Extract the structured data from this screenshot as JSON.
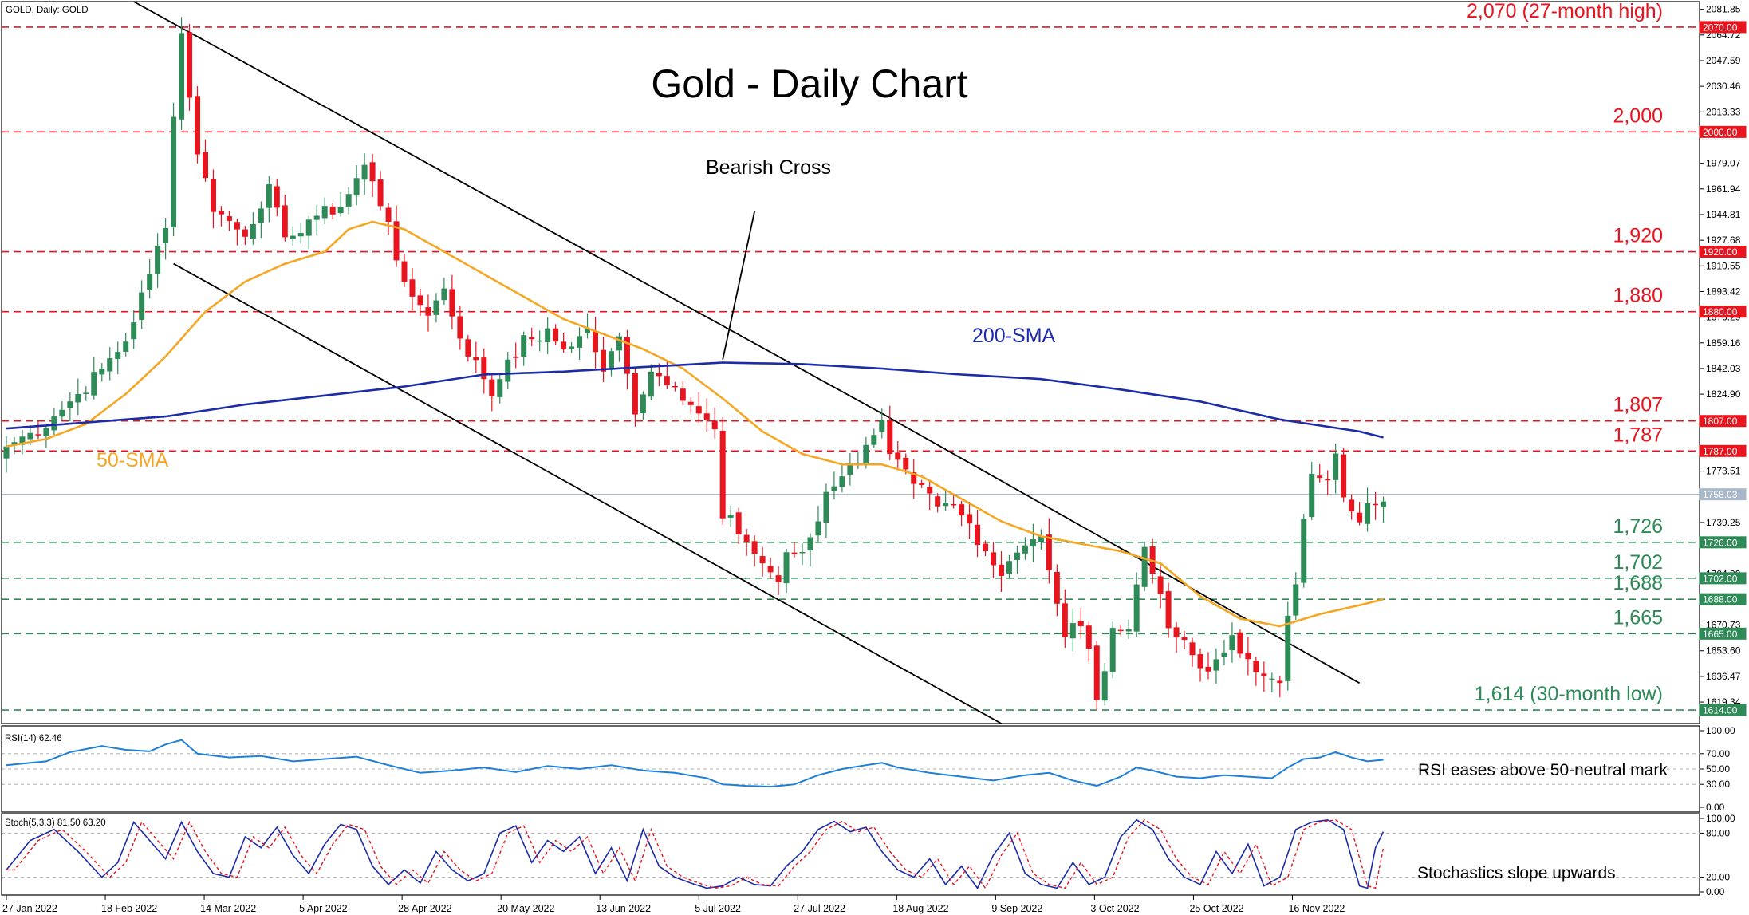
{
  "chart_data": {
    "type": "candlestick",
    "symbol_header": "GOLD, Daily:  GOLD",
    "title": "Gold - Daily Chart",
    "colors": {
      "up": "#2e8b57",
      "down": "#e8141e",
      "sma50": "#f5a623",
      "sma200": "#1c2ba8",
      "rsi": "#1e7fd8",
      "stoch_k": "#1c2ba8",
      "stoch_d": "#e8141e",
      "resistance": "#e8141e",
      "support": "#2e8b57",
      "price_line": "#a8b8c8"
    },
    "y_ticks": [
      "2081.85",
      "2064.72",
      "2047.59",
      "2030.46",
      "2013.33",
      "1979.07",
      "1961.94",
      "1944.81",
      "1927.68",
      "1910.55",
      "1893.42",
      "1876.29",
      "1859.16",
      "1842.03",
      "1824.90",
      "1773.51",
      "1739.25",
      "1704.99",
      "1670.73",
      "1653.60",
      "1636.47",
      "1619.34"
    ],
    "ylim": [
      1605,
      2087
    ],
    "x_ticks": [
      "27 Jan 2022",
      "18 Feb 2022",
      "14 Mar 2022",
      "5 Apr 2022",
      "28 Apr 2022",
      "20 May 2022",
      "13 Jun 2022",
      "5 Jul 2022",
      "27 Jul 2022",
      "18 Aug 2022",
      "9 Sep 2022",
      "3 Oct 2022",
      "25 Oct 2022",
      "16 Nov 2022"
    ],
    "levels": [
      {
        "value": 2070,
        "label": "2,070 (27-month high)",
        "tag": "2070.00",
        "kind": "resistance"
      },
      {
        "value": 2000,
        "label": "2,000",
        "tag": "2000.00",
        "kind": "resistance"
      },
      {
        "value": 1920,
        "label": "1,920",
        "tag": "1920.00",
        "kind": "resistance"
      },
      {
        "value": 1880,
        "label": "1,880",
        "tag": "1880.00",
        "kind": "resistance"
      },
      {
        "value": 1807,
        "label": "1,807",
        "tag": "1807.00",
        "kind": "resistance"
      },
      {
        "value": 1787,
        "label": "1,787",
        "tag": "1787.00",
        "kind": "resistance"
      },
      {
        "value": 1726,
        "label": "1,726",
        "tag": "1726.00",
        "kind": "support"
      },
      {
        "value": 1702,
        "label": "1,702",
        "tag": "1702.00",
        "kind": "support"
      },
      {
        "value": 1688,
        "label": "1,688",
        "tag": "1688.00",
        "kind": "support"
      },
      {
        "value": 1665,
        "label": "1,665",
        "tag": "1665.00",
        "kind": "support"
      },
      {
        "value": 1614,
        "label": "1,614 (30-month low)",
        "tag": "1614.00",
        "kind": "support"
      }
    ],
    "current_price": {
      "value": 1758.03,
      "tag": "1758.03"
    },
    "anchors": [
      [
        0,
        1790
      ],
      [
        5,
        1805
      ],
      [
        10,
        1830
      ],
      [
        15,
        1860
      ],
      [
        18,
        1905
      ],
      [
        20,
        1940
      ],
      [
        21,
        2010
      ],
      [
        22,
        2066
      ],
      [
        24,
        1985
      ],
      [
        26,
        1950
      ],
      [
        30,
        1930
      ],
      [
        33,
        1965
      ],
      [
        35,
        1925
      ],
      [
        38,
        1942
      ],
      [
        42,
        1950
      ],
      [
        45,
        1978
      ],
      [
        48,
        1940
      ],
      [
        50,
        1895
      ],
      [
        53,
        1880
      ],
      [
        55,
        1895
      ],
      [
        57,
        1862
      ],
      [
        59,
        1845
      ],
      [
        61,
        1825
      ],
      [
        63,
        1848
      ],
      [
        65,
        1860
      ],
      [
        68,
        1865
      ],
      [
        70,
        1855
      ],
      [
        73,
        1868
      ],
      [
        75,
        1840
      ],
      [
        77,
        1862
      ],
      [
        79,
        1815
      ],
      [
        81,
        1840
      ],
      [
        83,
        1835
      ],
      [
        85,
        1825
      ],
      [
        87,
        1812
      ],
      [
        89,
        1800
      ],
      [
        90,
        1742
      ],
      [
        91,
        1740
      ],
      [
        93,
        1726
      ],
      [
        95,
        1712
      ],
      [
        97,
        1700
      ],
      [
        98,
        1716
      ],
      [
        100,
        1720
      ],
      [
        102,
        1740
      ],
      [
        103,
        1762
      ],
      [
        105,
        1770
      ],
      [
        107,
        1782
      ],
      [
        109,
        1800
      ],
      [
        110,
        1805
      ],
      [
        111,
        1785
      ],
      [
        113,
        1770
      ],
      [
        115,
        1760
      ],
      [
        117,
        1750
      ],
      [
        119,
        1750
      ],
      [
        121,
        1738
      ],
      [
        123,
        1720
      ],
      [
        125,
        1705
      ],
      [
        127,
        1722
      ],
      [
        129,
        1728
      ],
      [
        130,
        1728
      ],
      [
        131,
        1705
      ],
      [
        133,
        1665
      ],
      [
        135,
        1670
      ],
      [
        136,
        1660
      ],
      [
        137,
        1622
      ],
      [
        138,
        1640
      ],
      [
        139,
        1668
      ],
      [
        141,
        1668
      ],
      [
        142,
        1702
      ],
      [
        143,
        1718
      ],
      [
        145,
        1692
      ],
      [
        146,
        1665
      ],
      [
        148,
        1660
      ],
      [
        150,
        1642
      ],
      [
        152,
        1645
      ],
      [
        154,
        1660
      ],
      [
        156,
        1648
      ],
      [
        158,
        1640
      ],
      [
        160,
        1630
      ],
      [
        161,
        1675
      ],
      [
        162,
        1698
      ],
      [
        163,
        1740
      ],
      [
        164,
        1768
      ],
      [
        166,
        1770
      ],
      [
        167,
        1782
      ],
      [
        168,
        1756
      ],
      [
        170,
        1744
      ],
      [
        171,
        1752
      ],
      [
        173,
        1758
      ]
    ],
    "sma50_anchors": [
      [
        0,
        1790
      ],
      [
        5,
        1795
      ],
      [
        10,
        1805
      ],
      [
        15,
        1825
      ],
      [
        20,
        1850
      ],
      [
        25,
        1880
      ],
      [
        30,
        1900
      ],
      [
        35,
        1912
      ],
      [
        40,
        1920
      ],
      [
        43,
        1935
      ],
      [
        46,
        1940
      ],
      [
        50,
        1935
      ],
      [
        55,
        1920
      ],
      [
        60,
        1905
      ],
      [
        65,
        1890
      ],
      [
        70,
        1875
      ],
      [
        75,
        1865
      ],
      [
        80,
        1855
      ],
      [
        85,
        1842
      ],
      [
        90,
        1822
      ],
      [
        95,
        1800
      ],
      [
        100,
        1785
      ],
      [
        105,
        1778
      ],
      [
        110,
        1778
      ],
      [
        115,
        1770
      ],
      [
        120,
        1755
      ],
      [
        125,
        1740
      ],
      [
        130,
        1730
      ],
      [
        135,
        1725
      ],
      [
        140,
        1720
      ],
      [
        145,
        1712
      ],
      [
        150,
        1690
      ],
      [
        155,
        1675
      ],
      [
        160,
        1670
      ],
      [
        165,
        1678
      ],
      [
        170,
        1684
      ],
      [
        173,
        1688
      ]
    ],
    "sma200_anchors": [
      [
        0,
        1802
      ],
      [
        10,
        1806
      ],
      [
        20,
        1810
      ],
      [
        30,
        1818
      ],
      [
        40,
        1824
      ],
      [
        50,
        1830
      ],
      [
        60,
        1838
      ],
      [
        70,
        1840
      ],
      [
        80,
        1843
      ],
      [
        90,
        1846
      ],
      [
        100,
        1845
      ],
      [
        110,
        1842
      ],
      [
        120,
        1838
      ],
      [
        130,
        1835
      ],
      [
        140,
        1828
      ],
      [
        150,
        1820
      ],
      [
        160,
        1808
      ],
      [
        165,
        1804
      ],
      [
        170,
        1800
      ],
      [
        173,
        1796
      ]
    ],
    "rsi": {
      "label": "RSI(14) 62.46",
      "ticks": [
        "100.00",
        "70.00",
        "50.00",
        "30.00",
        "0.00"
      ],
      "ylim": [
        0,
        100
      ],
      "anchors": [
        [
          0,
          55
        ],
        [
          5,
          60
        ],
        [
          8,
          72
        ],
        [
          12,
          80
        ],
        [
          15,
          75
        ],
        [
          18,
          73
        ],
        [
          20,
          82
        ],
        [
          22,
          88
        ],
        [
          24,
          70
        ],
        [
          28,
          65
        ],
        [
          32,
          67
        ],
        [
          36,
          60
        ],
        [
          40,
          63
        ],
        [
          44,
          66
        ],
        [
          48,
          55
        ],
        [
          52,
          45
        ],
        [
          56,
          48
        ],
        [
          60,
          52
        ],
        [
          64,
          46
        ],
        [
          68,
          54
        ],
        [
          72,
          50
        ],
        [
          76,
          55
        ],
        [
          80,
          48
        ],
        [
          84,
          45
        ],
        [
          88,
          38
        ],
        [
          90,
          30
        ],
        [
          93,
          28
        ],
        [
          96,
          27
        ],
        [
          99,
          30
        ],
        [
          102,
          42
        ],
        [
          105,
          50
        ],
        [
          108,
          55
        ],
        [
          110,
          58
        ],
        [
          112,
          52
        ],
        [
          116,
          45
        ],
        [
          120,
          40
        ],
        [
          124,
          35
        ],
        [
          128,
          42
        ],
        [
          131,
          45
        ],
        [
          134,
          35
        ],
        [
          137,
          28
        ],
        [
          140,
          40
        ],
        [
          142,
          52
        ],
        [
          144,
          48
        ],
        [
          147,
          40
        ],
        [
          150,
          38
        ],
        [
          153,
          42
        ],
        [
          156,
          40
        ],
        [
          159,
          38
        ],
        [
          161,
          52
        ],
        [
          163,
          63
        ],
        [
          165,
          65
        ],
        [
          167,
          72
        ],
        [
          169,
          65
        ],
        [
          171,
          60
        ],
        [
          173,
          62
        ]
      ]
    },
    "stochastics": {
      "label": "Stoch(5,3,3) 81.50 63.20",
      "ticks": [
        "100.00",
        "80.00",
        "20.00",
        "0.00"
      ],
      "ylim": [
        0,
        100
      ],
      "anchors": [
        [
          0,
          30
        ],
        [
          3,
          70
        ],
        [
          6,
          85
        ],
        [
          9,
          55
        ],
        [
          12,
          20
        ],
        [
          14,
          40
        ],
        [
          16,
          95
        ],
        [
          18,
          70
        ],
        [
          20,
          45
        ],
        [
          22,
          95
        ],
        [
          24,
          55
        ],
        [
          26,
          25
        ],
        [
          28,
          20
        ],
        [
          30,
          75
        ],
        [
          32,
          60
        ],
        [
          34,
          88
        ],
        [
          36,
          50
        ],
        [
          38,
          25
        ],
        [
          40,
          65
        ],
        [
          42,
          92
        ],
        [
          44,
          85
        ],
        [
          46,
          35
        ],
        [
          48,
          10
        ],
        [
          50,
          30
        ],
        [
          52,
          12
        ],
        [
          54,
          55
        ],
        [
          56,
          30
        ],
        [
          58,
          15
        ],
        [
          60,
          25
        ],
        [
          62,
          80
        ],
        [
          64,
          90
        ],
        [
          66,
          40
        ],
        [
          68,
          70
        ],
        [
          70,
          55
        ],
        [
          72,
          75
        ],
        [
          74,
          25
        ],
        [
          76,
          60
        ],
        [
          78,
          15
        ],
        [
          80,
          85
        ],
        [
          82,
          35
        ],
        [
          84,
          20
        ],
        [
          86,
          12
        ],
        [
          88,
          5
        ],
        [
          90,
          8
        ],
        [
          92,
          20
        ],
        [
          94,
          10
        ],
        [
          96,
          8
        ],
        [
          98,
          35
        ],
        [
          100,
          55
        ],
        [
          102,
          85
        ],
        [
          104,
          96
        ],
        [
          106,
          82
        ],
        [
          108,
          88
        ],
        [
          110,
          55
        ],
        [
          112,
          30
        ],
        [
          114,
          20
        ],
        [
          116,
          45
        ],
        [
          118,
          10
        ],
        [
          120,
          35
        ],
        [
          122,
          5
        ],
        [
          124,
          50
        ],
        [
          126,
          80
        ],
        [
          128,
          25
        ],
        [
          130,
          10
        ],
        [
          132,
          5
        ],
        [
          134,
          40
        ],
        [
          136,
          10
        ],
        [
          138,
          20
        ],
        [
          140,
          75
        ],
        [
          142,
          98
        ],
        [
          144,
          85
        ],
        [
          146,
          45
        ],
        [
          148,
          20
        ],
        [
          150,
          10
        ],
        [
          152,
          55
        ],
        [
          154,
          25
        ],
        [
          156,
          65
        ],
        [
          158,
          8
        ],
        [
          160,
          20
        ],
        [
          162,
          85
        ],
        [
          164,
          95
        ],
        [
          166,
          98
        ],
        [
          168,
          85
        ],
        [
          170,
          8
        ],
        [
          171,
          5
        ],
        [
          172,
          60
        ],
        [
          173,
          82
        ]
      ]
    },
    "annotations": {
      "bearish_cross": "Bearish Cross",
      "sma200": "200-SMA",
      "sma50": "50-SMA",
      "rsi_note": "RSI eases above 50-neutral mark",
      "stoch_note": "Stochastics slope upwards"
    },
    "trendlines": [
      {
        "name": "channel-upper",
        "points": [
          [
            16,
            2087
          ],
          [
            110,
            1812
          ]
        ]
      },
      {
        "name": "channel-upper-ext",
        "points": [
          [
            110,
            1812
          ],
          [
            170,
            1632
          ]
        ]
      },
      {
        "name": "channel-lower",
        "points": [
          [
            21,
            1912
          ],
          [
            125,
            1605
          ]
        ]
      },
      {
        "name": "bearish-cross-pointer",
        "points": [
          [
            90,
            1848
          ],
          [
            94,
            1947
          ]
        ]
      }
    ]
  }
}
